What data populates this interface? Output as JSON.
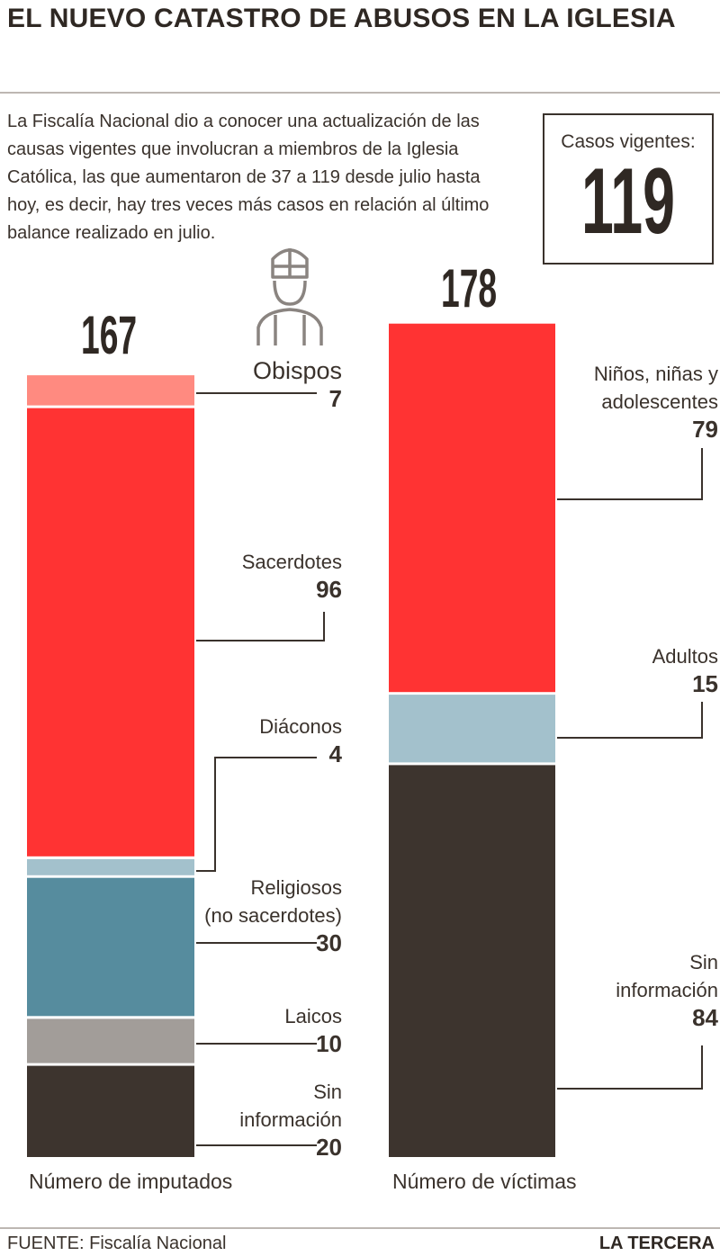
{
  "header": {
    "title": "EL NUEVO CATASTRO DE ABUSOS EN LA IGLESIA",
    "intro": "La Fiscalía Nacional dio a conocer una actualización de las causas vigentes que involucran a miembros de la Iglesia Católica, las que aumentaron de 37 a 119 desde julio hasta hoy, es decir, hay tres veces más casos en relación al último balance realizado en julio."
  },
  "cases_box": {
    "label": "Casos vigentes:",
    "value": "119"
  },
  "icons": {
    "bishop": "bishop-icon"
  },
  "colors": {
    "obispos": "#ff8a80",
    "sacerdotes": "#ff3333",
    "diaconos": "#a3c1cc",
    "religiosos": "#568c9e",
    "laicos": "#a29d99",
    "sin_info": "#3d342e",
    "ninos": "#ff3333",
    "adultos": "#a3c1cc",
    "leader": "#3a322c"
  },
  "chart_data": [
    {
      "type": "bar",
      "stacked": true,
      "xlabel": "Número de imputados",
      "total": 167,
      "series": [
        {
          "name": "Obispos",
          "value": 7,
          "color": "#ff8a80"
        },
        {
          "name": "Sacerdotes",
          "value": 96,
          "color": "#ff3333"
        },
        {
          "name": "Diáconos",
          "value": 4,
          "color": "#a3c1cc"
        },
        {
          "name": "Religiosos (no sacerdotes)",
          "value": 30,
          "color": "#568c9e"
        },
        {
          "name": "Laicos",
          "value": 10,
          "color": "#a29d99"
        },
        {
          "name": "Sin información",
          "value": 20,
          "color": "#3d342e"
        }
      ]
    },
    {
      "type": "bar",
      "stacked": true,
      "xlabel": "Número de víctimas",
      "total": 178,
      "series": [
        {
          "name": "Niños, niñas y adolescentes",
          "value": 79,
          "color": "#ff3333"
        },
        {
          "name": "Adultos",
          "value": 15,
          "color": "#a3c1cc"
        },
        {
          "name": "Sin información",
          "value": 84,
          "color": "#3d342e"
        }
      ]
    }
  ],
  "labels": {
    "imputados": [
      {
        "line1": "Obispos",
        "line2": "",
        "value": "7"
      },
      {
        "line1": "Sacerdotes",
        "line2": "",
        "value": "96"
      },
      {
        "line1": "Diáconos",
        "line2": "",
        "value": "4"
      },
      {
        "line1": "Religiosos",
        "line2": "(no sacerdotes)",
        "value": "30"
      },
      {
        "line1": "Laicos",
        "line2": "",
        "value": "10"
      },
      {
        "line1": "Sin",
        "line2": "información",
        "value": "20"
      }
    ],
    "victimas": [
      {
        "line1": "Niños, niñas y",
        "line2": "adolescentes",
        "value": "79"
      },
      {
        "line1": "Adultos",
        "line2": "",
        "value": "15"
      },
      {
        "line1": "Sin",
        "line2": "información",
        "value": "84"
      }
    ],
    "total_imputados": "167",
    "total_victimas": "178"
  },
  "footer": {
    "source": "FUENTE: Fiscalía Nacional",
    "brand": "LA TERCERA"
  }
}
